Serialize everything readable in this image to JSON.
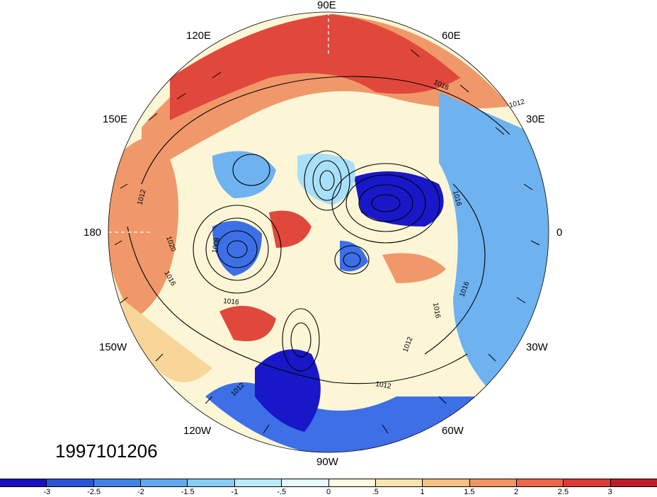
{
  "map": {
    "projection": "north-polar-stereographic",
    "longitude_labels": {
      "lon_90E": "90E",
      "lon_60E": "60E",
      "lon_30E": "30E",
      "lon_0": "0",
      "lon_30W": "30W",
      "lon_60W": "60W",
      "lon_90W": "90W",
      "lon_120W": "120W",
      "lon_150W": "150W",
      "lon_180": "180",
      "lon_150E": "150E",
      "lon_120E": "120E"
    },
    "contour_labels": [
      "1016",
      "1012",
      "1012",
      "1020",
      "1012",
      "1016",
      "1008",
      "1016",
      "1016",
      "1012",
      "1016",
      "1016",
      "1012"
    ],
    "fill_colors": {
      "cold_deep": "#1818c8",
      "cold": "#3d6fe6",
      "cool": "#6fb2f0",
      "cool_light": "#a8e0fa",
      "neutral": "#fdf6d6",
      "warm_light": "#f8d69a",
      "warm": "#f0986a",
      "hot": "#e0483c",
      "hot_deep": "#b8182a"
    }
  },
  "timestamp": "1997101206",
  "colorbar": {
    "colors": [
      "#1a0fc2",
      "#2a55d8",
      "#3f83e8",
      "#5fa8f2",
      "#86cdf6",
      "#b8ebfb",
      "#e6faff",
      "#fffbe0",
      "#fae6ad",
      "#f7c07f",
      "#f3935f",
      "#ee6548",
      "#df3a34",
      "#c21c26"
    ],
    "labels": [
      "-3",
      "-2.5",
      "-2",
      "-1.5",
      "-1",
      "-.5",
      "0",
      ".5",
      "1",
      "1.5",
      "2",
      "2.5",
      "3"
    ]
  }
}
